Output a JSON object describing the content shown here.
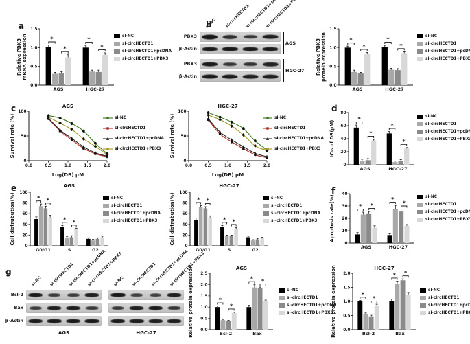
{
  "figure": {
    "background": "#ffffff",
    "text_color": "#1a1a1a",
    "groups": [
      {
        "label": "si-NC",
        "bar_color": "#000000",
        "line_color": "#3a7a22",
        "marker": "circle"
      },
      {
        "label": "si-circHECTD1",
        "bar_color": "#a8a8a8",
        "line_color": "#b3271c",
        "marker": "square"
      },
      {
        "label": "si-circHECTD1+pcDNA",
        "bar_color": "#8a8a8a",
        "line_color": "#222222",
        "marker": "triangle"
      },
      {
        "label": "si-circHECTD1+PBX3",
        "bar_color": "#d8d8d8",
        "line_color": "#a5961f",
        "marker": "diamond"
      }
    ]
  },
  "panels": {
    "a": "a",
    "b": "b",
    "c": "c",
    "d": "d",
    "e": "e",
    "f": "f",
    "g": "g"
  },
  "blot_b": {
    "col_labels": [
      "si-NC",
      "si-circHECTD1",
      "si-circHECTD1+pcDNA",
      "si-circHECTD1+PBX3"
    ],
    "rows": [
      {
        "label": "PBX3",
        "bands": [
          0.95,
          0.65,
          0.55,
          0.85
        ]
      },
      {
        "label": "β-Actin",
        "bands": [
          0.9,
          0.92,
          0.9,
          0.9
        ]
      },
      {
        "label": "PBX3",
        "bands": [
          0.9,
          0.55,
          0.6,
          0.8
        ]
      },
      {
        "label": "β-Actin",
        "bands": [
          0.92,
          0.9,
          0.85,
          0.85
        ]
      }
    ],
    "side_groups": [
      {
        "label": "AGS",
        "rows": [
          0,
          1
        ]
      },
      {
        "label": "HGC-27",
        "rows": [
          2,
          3
        ]
      }
    ]
  },
  "blot_g": {
    "col_labels": [
      "si-NC",
      "si-circHECTD1",
      "si-circHECTD1+pcDNA",
      "si-circHECTD1+PBX3"
    ],
    "rows": [
      {
        "label": "Bcl-2",
        "left": [
          0.9,
          0.5,
          0.5,
          0.85
        ],
        "right": [
          0.92,
          0.45,
          0.45,
          0.85
        ]
      },
      {
        "label": "Bax",
        "left": [
          0.5,
          0.85,
          0.88,
          0.55
        ],
        "right": [
          0.55,
          0.85,
          0.9,
          0.6
        ]
      },
      {
        "label": "β-Actin",
        "left": [
          0.9,
          0.9,
          0.9,
          0.9
        ],
        "right": [
          0.9,
          0.88,
          0.85,
          0.85
        ]
      }
    ],
    "bottom_labels": [
      "AGS",
      "HGC-27"
    ]
  },
  "chart_data": [
    {
      "id": "chart-a",
      "type": "bar",
      "title": "",
      "ylabel": [
        "Relative PBX3",
        "mRNA expression"
      ],
      "ylim": [
        0,
        1.5
      ],
      "yticks": [
        "0.0",
        "0.5",
        "1.0",
        "1.5"
      ],
      "categories": [
        "AGS",
        "HGC-27"
      ],
      "series": [
        {
          "name": "si-NC",
          "values": [
            1.02,
            1.0
          ],
          "err": [
            0.05,
            0.06
          ]
        },
        {
          "name": "si-circHECTD1",
          "values": [
            0.3,
            0.36
          ],
          "err": [
            0.04,
            0.04
          ]
        },
        {
          "name": "si-circHECTD1+pcDNA",
          "values": [
            0.31,
            0.35
          ],
          "err": [
            0.05,
            0.05
          ]
        },
        {
          "name": "si-circHECTD1+PBX3",
          "values": [
            0.74,
            0.81
          ],
          "err": [
            0.07,
            0.05
          ]
        }
      ],
      "sig": [
        [
          0,
          0,
          1
        ],
        [
          0,
          2,
          3
        ],
        [
          1,
          0,
          1
        ],
        [
          1,
          2,
          3
        ]
      ],
      "sig_label": "*"
    },
    {
      "id": "chart-b",
      "type": "bar",
      "title": "",
      "ylabel": [
        "Relative PBX3",
        "protein expression"
      ],
      "ylim": [
        0,
        1.5
      ],
      "yticks": [
        "0.0",
        "0.5",
        "1.0",
        "1.5"
      ],
      "categories": [
        "AGS",
        "HGC-27"
      ],
      "series": [
        {
          "name": "si-NC",
          "values": [
            1.0,
            1.01
          ],
          "err": [
            0.04,
            0.05
          ]
        },
        {
          "name": "si-circHECTD1",
          "values": [
            0.35,
            0.41
          ],
          "err": [
            0.05,
            0.04
          ]
        },
        {
          "name": "si-circHECTD1+pcDNA",
          "values": [
            0.31,
            0.4
          ],
          "err": [
            0.03,
            0.04
          ]
        },
        {
          "name": "si-circHECTD1+PBX3",
          "values": [
            0.83,
            0.85
          ],
          "err": [
            0.04,
            0.04
          ]
        }
      ],
      "sig": [
        [
          0,
          0,
          1
        ],
        [
          0,
          2,
          3
        ],
        [
          1,
          0,
          1
        ],
        [
          1,
          2,
          3
        ]
      ],
      "sig_label": "*"
    },
    {
      "id": "chart-c-ags",
      "type": "line",
      "title": "AGS",
      "ylabel": [
        "Survival rate (%)"
      ],
      "xlabel": "Log(DB) μM",
      "ylim": [
        0,
        100
      ],
      "yticks": [
        "0",
        "50",
        "100"
      ],
      "xlim": [
        0,
        2.0
      ],
      "xticks": [
        "0.0",
        "0.5",
        "1.0",
        "1.5",
        "2.0"
      ],
      "x": [
        0.5,
        0.8,
        1.1,
        1.4,
        1.7,
        2.0
      ],
      "err": 3,
      "series": [
        {
          "name": "si-NC",
          "values": [
            91,
            86,
            75,
            60,
            35,
            14
          ]
        },
        {
          "name": "si-circHECTD1",
          "values": [
            85,
            60,
            42,
            25,
            14,
            8
          ]
        },
        {
          "name": "si-circHECTD1+pcDNA",
          "values": [
            86,
            62,
            45,
            28,
            16,
            9
          ]
        },
        {
          "name": "si-circHECTD1+PBX3",
          "values": [
            88,
            76,
            63,
            44,
            29,
            12
          ]
        }
      ]
    },
    {
      "id": "chart-c-hgc",
      "type": "line",
      "title": "HGC-27",
      "ylabel": [
        "Survival rate (%)"
      ],
      "xlabel": "Log(DB) μM",
      "ylim": [
        0,
        100
      ],
      "yticks": [
        "0",
        "50",
        "100"
      ],
      "xlim": [
        0,
        2.0
      ],
      "xticks": [
        "0.0",
        "0.5",
        "1.0",
        "1.5",
        "2.0"
      ],
      "x": [
        0.5,
        0.8,
        1.1,
        1.4,
        1.7,
        2.0
      ],
      "err": 3,
      "series": [
        {
          "name": "si-NC",
          "values": [
            97,
            88,
            78,
            65,
            40,
            22
          ]
        },
        {
          "name": "si-circHECTD1",
          "values": [
            83,
            54,
            38,
            24,
            12,
            6
          ]
        },
        {
          "name": "si-circHECTD1+pcDNA",
          "values": [
            85,
            58,
            42,
            28,
            15,
            8
          ]
        },
        {
          "name": "si-circHECTD1+PBX3",
          "values": [
            92,
            83,
            70,
            52,
            30,
            20
          ]
        }
      ]
    },
    {
      "id": "chart-d",
      "type": "bar",
      "title": "",
      "ylabel": [
        "IC₅₀ of DB(μM)"
      ],
      "ylim": [
        0,
        80
      ],
      "yticks": [
        "0",
        "20",
        "40",
        "60",
        "80"
      ],
      "categories": [
        "AGS",
        "HGC-27"
      ],
      "series": [
        {
          "name": "si-NC",
          "values": [
            57,
            48
          ],
          "err": [
            4,
            3
          ]
        },
        {
          "name": "si-circHECTD1",
          "values": [
            6,
            4
          ],
          "err": [
            2.5,
            1.5
          ]
        },
        {
          "name": "si-circHECTD1+pcDNA",
          "values": [
            7,
            6
          ],
          "err": [
            2.5,
            2
          ]
        },
        {
          "name": "si-circHECTD1+PBX3",
          "values": [
            37,
            25
          ],
          "err": [
            2,
            1.5
          ]
        }
      ],
      "sig": [
        [
          0,
          0,
          1
        ],
        [
          0,
          2,
          3
        ],
        [
          1,
          0,
          1
        ],
        [
          1,
          2,
          3
        ]
      ],
      "sig_label": "*"
    },
    {
      "id": "chart-e-ags",
      "type": "bar",
      "title": "AGS",
      "ylabel": [
        "Cell distrubution(%)"
      ],
      "ylim": [
        0,
        100
      ],
      "yticks": [
        "0",
        "20",
        "40",
        "60",
        "80",
        "100"
      ],
      "categories": [
        "G0/G1",
        "S",
        "G2"
      ],
      "series": [
        {
          "name": "si-NC",
          "values": [
            50,
            35,
            13
          ],
          "err": [
            4,
            3,
            2
          ]
        },
        {
          "name": "si-circHECTD1",
          "values": [
            74,
            15,
            10
          ],
          "err": [
            4,
            2,
            2
          ]
        },
        {
          "name": "si-circHECTD1+pcDNA",
          "values": [
            70,
            16,
            13
          ],
          "err": [
            4,
            3,
            2
          ]
        },
        {
          "name": "si-circHECTD1+PBX3",
          "values": [
            53,
            31,
            16
          ],
          "err": [
            4,
            2,
            2
          ]
        }
      ],
      "sig": [
        [
          0,
          0,
          1
        ],
        [
          0,
          2,
          3
        ],
        [
          1,
          0,
          1
        ],
        [
          1,
          2,
          3
        ]
      ],
      "sig_label": "*"
    },
    {
      "id": "chart-e-hgc",
      "type": "bar",
      "title": "HGC-27",
      "ylabel": [
        "Cell distrubution(%)"
      ],
      "ylim": [
        0,
        100
      ],
      "yticks": [
        "0",
        "20",
        "40",
        "60",
        "80",
        "100"
      ],
      "categories": [
        "G0/G1",
        "S",
        "G2"
      ],
      "series": [
        {
          "name": "si-NC",
          "values": [
            48,
            35,
            16
          ],
          "err": [
            4,
            3,
            2
          ]
        },
        {
          "name": "si-circHECTD1",
          "values": [
            72,
            18,
            10
          ],
          "err": [
            3,
            2,
            1.5
          ]
        },
        {
          "name": "si-circHECTD1+pcDNA",
          "values": [
            70,
            18,
            12
          ],
          "err": [
            3,
            2,
            2
          ]
        },
        {
          "name": "si-circHECTD1+PBX3",
          "values": [
            53,
            32,
            14
          ],
          "err": [
            3,
            2,
            2
          ]
        }
      ],
      "sig": [
        [
          0,
          0,
          1
        ],
        [
          0,
          2,
          3
        ],
        [
          1,
          0,
          1
        ],
        [
          1,
          2,
          3
        ]
      ],
      "sig_label": "*"
    },
    {
      "id": "chart-f",
      "type": "bar",
      "title": "",
      "ylabel": [
        "Apoptosis rate(%)"
      ],
      "ylim": [
        0,
        40
      ],
      "yticks": [
        "0",
        "10",
        "20",
        "30",
        "40"
      ],
      "categories": [
        "AGS",
        "HGC-27"
      ],
      "series": [
        {
          "name": "si-NC",
          "values": [
            7,
            6.5
          ],
          "err": [
            1.5,
            1
          ]
        },
        {
          "name": "si-circHECTD1",
          "values": [
            23,
            27.5
          ],
          "err": [
            2,
            3
          ]
        },
        {
          "name": "si-circHECTD1+pcDNA",
          "values": [
            24,
            25.5
          ],
          "err": [
            1.5,
            2
          ]
        },
        {
          "name": "si-circHECTD1+PBX3",
          "values": [
            12.5,
            14
          ],
          "err": [
            1.5,
            1
          ]
        }
      ],
      "sig": [
        [
          0,
          0,
          1
        ],
        [
          0,
          2,
          3
        ],
        [
          1,
          0,
          1
        ],
        [
          1,
          2,
          3
        ]
      ],
      "sig_label": "*"
    },
    {
      "id": "chart-g-ags",
      "type": "bar",
      "title": "AGS",
      "ylabel": [
        "Relative protein expression"
      ],
      "ylim": [
        0,
        2.5
      ],
      "yticks": [
        "0.0",
        "0.5",
        "1.0",
        "1.5",
        "2.0",
        "2.5"
      ],
      "categories": [
        "Bcl-2",
        "Bax"
      ],
      "series": [
        {
          "name": "si-NC",
          "values": [
            1.0,
            1.0
          ],
          "err": [
            0.05,
            0.08
          ]
        },
        {
          "name": "si-circHECTD1",
          "values": [
            0.42,
            1.87
          ],
          "err": [
            0.04,
            0.12
          ]
        },
        {
          "name": "si-circHECTD1+pcDNA",
          "values": [
            0.38,
            1.83
          ],
          "err": [
            0.03,
            0.06
          ]
        },
        {
          "name": "si-circHECTD1+PBX3",
          "values": [
            0.73,
            1.25
          ],
          "err": [
            0.05,
            0.06
          ]
        }
      ],
      "sig": [
        [
          0,
          0,
          1
        ],
        [
          0,
          2,
          3
        ],
        [
          1,
          0,
          1
        ],
        [
          1,
          2,
          3
        ]
      ],
      "sig_label": "*"
    },
    {
      "id": "chart-g-hgc",
      "type": "bar",
      "title": "HGC-27",
      "ylabel": [
        "Relative protein expression"
      ],
      "ylim": [
        0,
        2.0
      ],
      "yticks": [
        "0.0",
        "0.5",
        "1.0",
        "1.5",
        "2.0"
      ],
      "categories": [
        "Bcl-2",
        "Bax"
      ],
      "series": [
        {
          "name": "si-NC",
          "values": [
            1.0,
            1.0
          ],
          "err": [
            0.04,
            0.08
          ]
        },
        {
          "name": "si-circHECTD1",
          "values": [
            0.55,
            1.63
          ],
          "err": [
            0.04,
            0.09
          ]
        },
        {
          "name": "si-circHECTD1+pcDNA",
          "values": [
            0.47,
            1.75
          ],
          "err": [
            0.04,
            0.05
          ]
        },
        {
          "name": "si-circHECTD1+PBX3",
          "values": [
            0.85,
            1.25
          ],
          "err": [
            0.05,
            0.07
          ]
        }
      ],
      "sig": [
        [
          0,
          0,
          1
        ],
        [
          0,
          2,
          3
        ],
        [
          1,
          0,
          1
        ],
        [
          1,
          2,
          3
        ]
      ],
      "sig_label": "*"
    }
  ]
}
